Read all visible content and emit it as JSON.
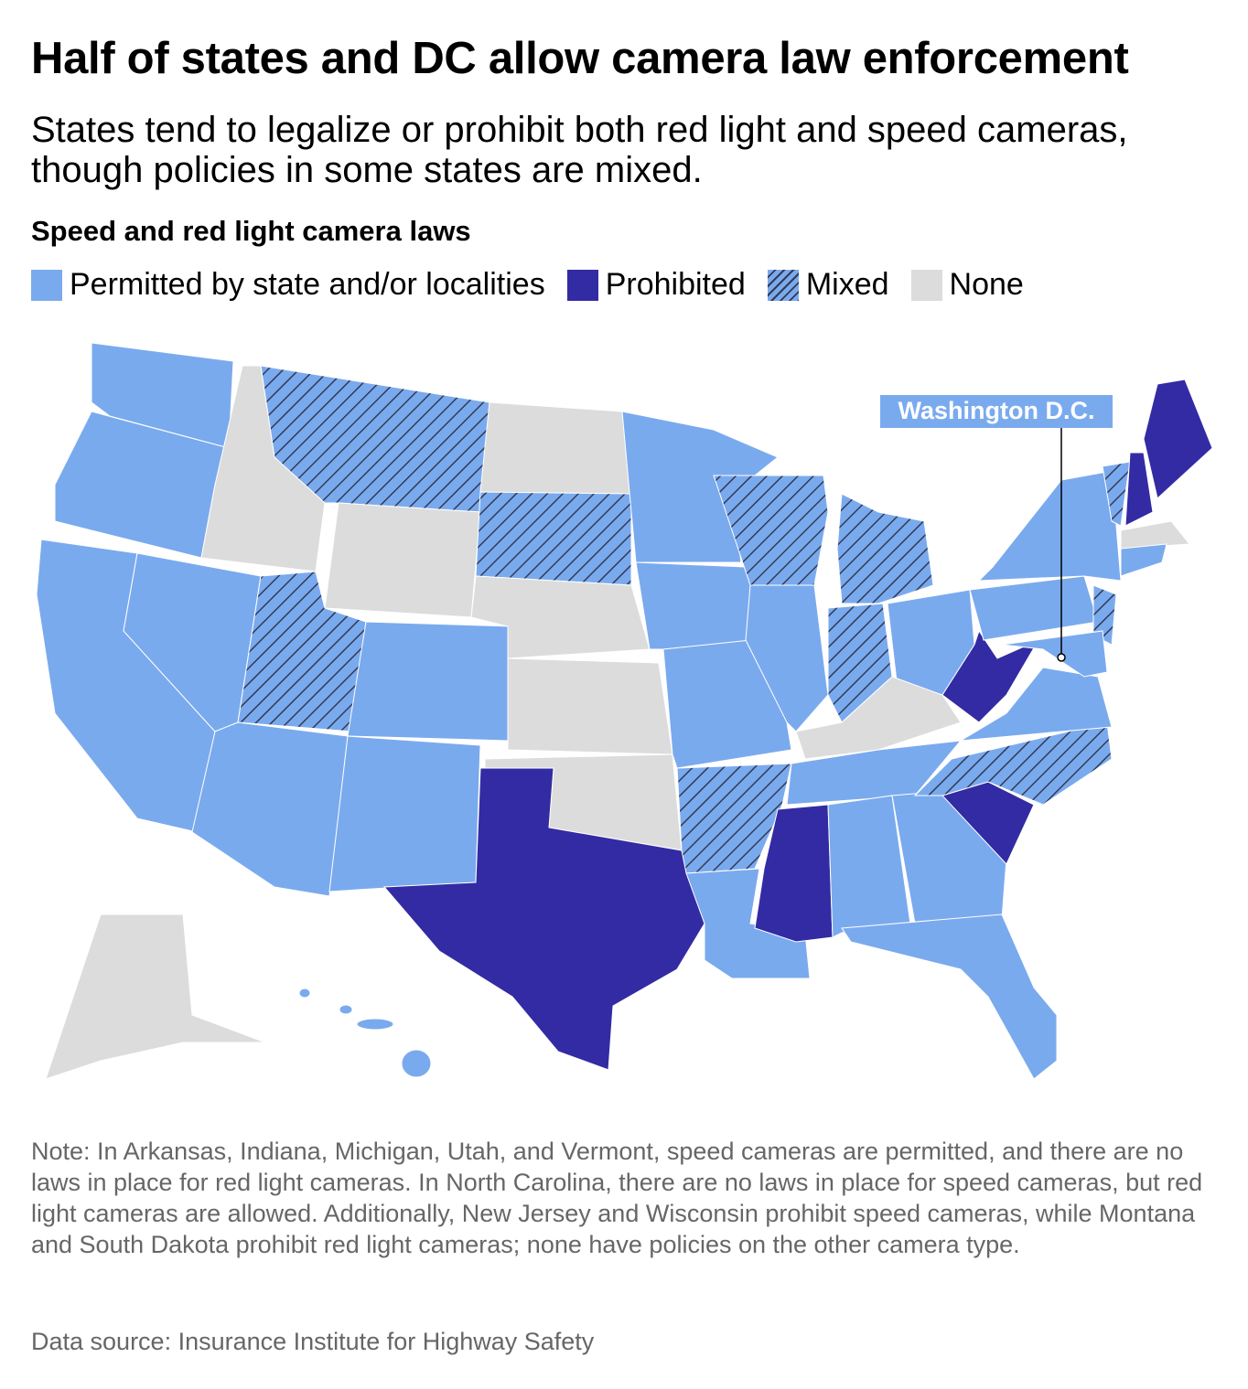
{
  "title": "Half of states and DC allow camera law enforcement",
  "subtitle": "States tend to legalize or prohibit both red light and speed cameras, though policies in some states are mixed.",
  "legend": {
    "title": "Speed and red light camera laws",
    "items": [
      {
        "label": "Permitted by state and/or localities",
        "color": "#7aaaee"
      },
      {
        "label": "Prohibited",
        "color": "#332ba3"
      },
      {
        "label": "Mixed",
        "color": "#7aaaee",
        "hatch": "#333a55"
      },
      {
        "label": "None",
        "color": "#dcdcdc"
      }
    ]
  },
  "annotation": "Washington D.C.",
  "note": "Note: In Arkansas, Indiana, Michigan, Utah, and Vermont, speed cameras are permitted, and there are no laws in place for red light cameras. In North Carolina, there are no laws in place for speed cameras, but red light cameras are allowed. Additionally, New Jersey and Wisconsin prohibit speed cameras, while Montana and South Dakota prohibit red light cameras; none have policies on the other camera type.",
  "source": "Data source: Insurance Institute for Highway Safety"
}
